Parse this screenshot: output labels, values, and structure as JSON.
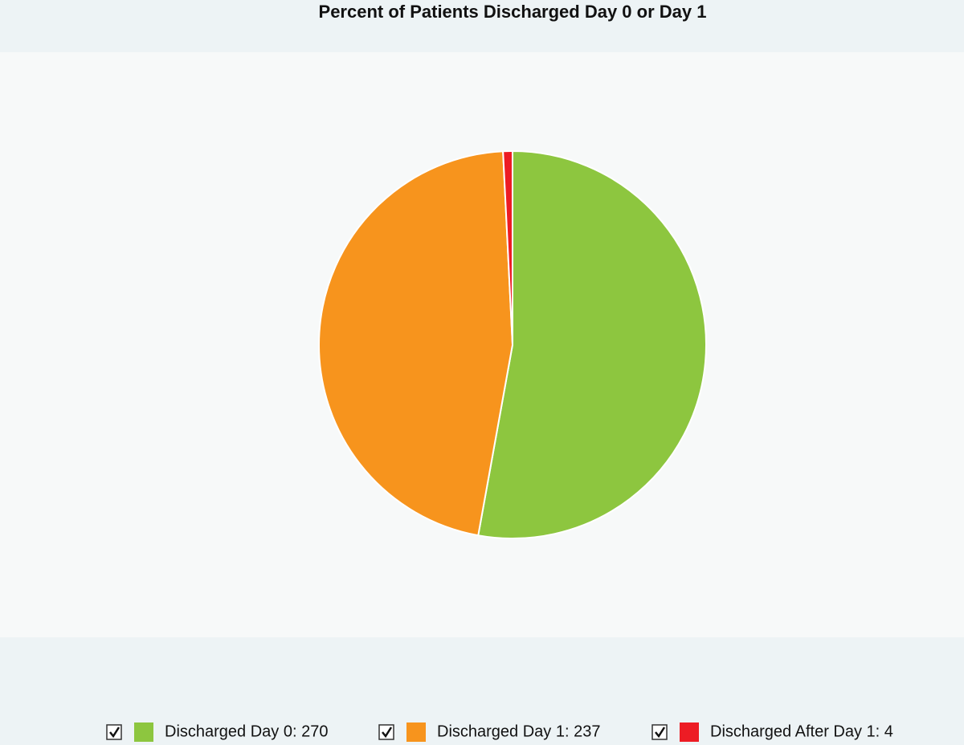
{
  "chart_data": {
    "type": "pie",
    "title": "Percent of Patients Discharged Day 0 or Day 1",
    "categories": [
      "Discharged Day 0: 270",
      "Discharged Day 1: 237",
      "Discharged After Day 1: 4"
    ],
    "values": [
      270,
      237,
      4
    ],
    "colors": [
      "#8dc63f",
      "#f7941d",
      "#ed1c24"
    ],
    "legend": "bottom"
  }
}
